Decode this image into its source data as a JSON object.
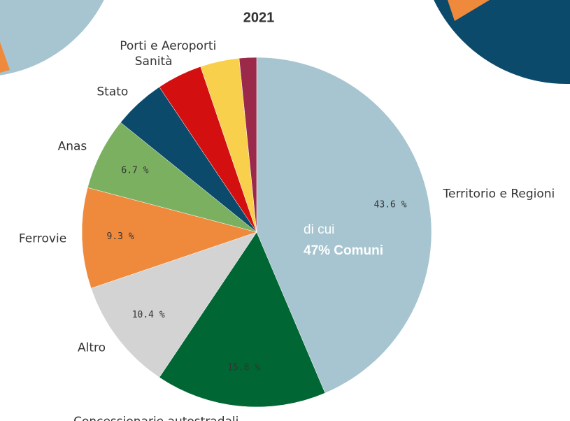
{
  "chart_data": {
    "type": "pie",
    "title": "2021",
    "categories": [
      "Territorio e Regioni",
      "Concessionarie autostradali",
      "Altro",
      "Ferrovie",
      "Anas",
      "Stato",
      "Sanità",
      "Porti e Aeroporti",
      null
    ],
    "values": [
      43.6,
      15.8,
      10.4,
      9.3,
      6.7,
      4.8,
      4.2,
      3.6,
      1.6
    ],
    "value_labels": [
      "43.6 %",
      "15.8 %",
      "10.4 %",
      "9.3 %",
      "6.7 %",
      null,
      null,
      null,
      null
    ],
    "colors": [
      "#a6c5d0",
      "#006633",
      "#d3d3d3",
      "#ef8a3c",
      "#7cb061",
      "#0b4a6b",
      "#d40f0f",
      "#f8d04b",
      "#9b2a4a"
    ],
    "annotations": [
      "di cui",
      "47% Comuni"
    ]
  }
}
